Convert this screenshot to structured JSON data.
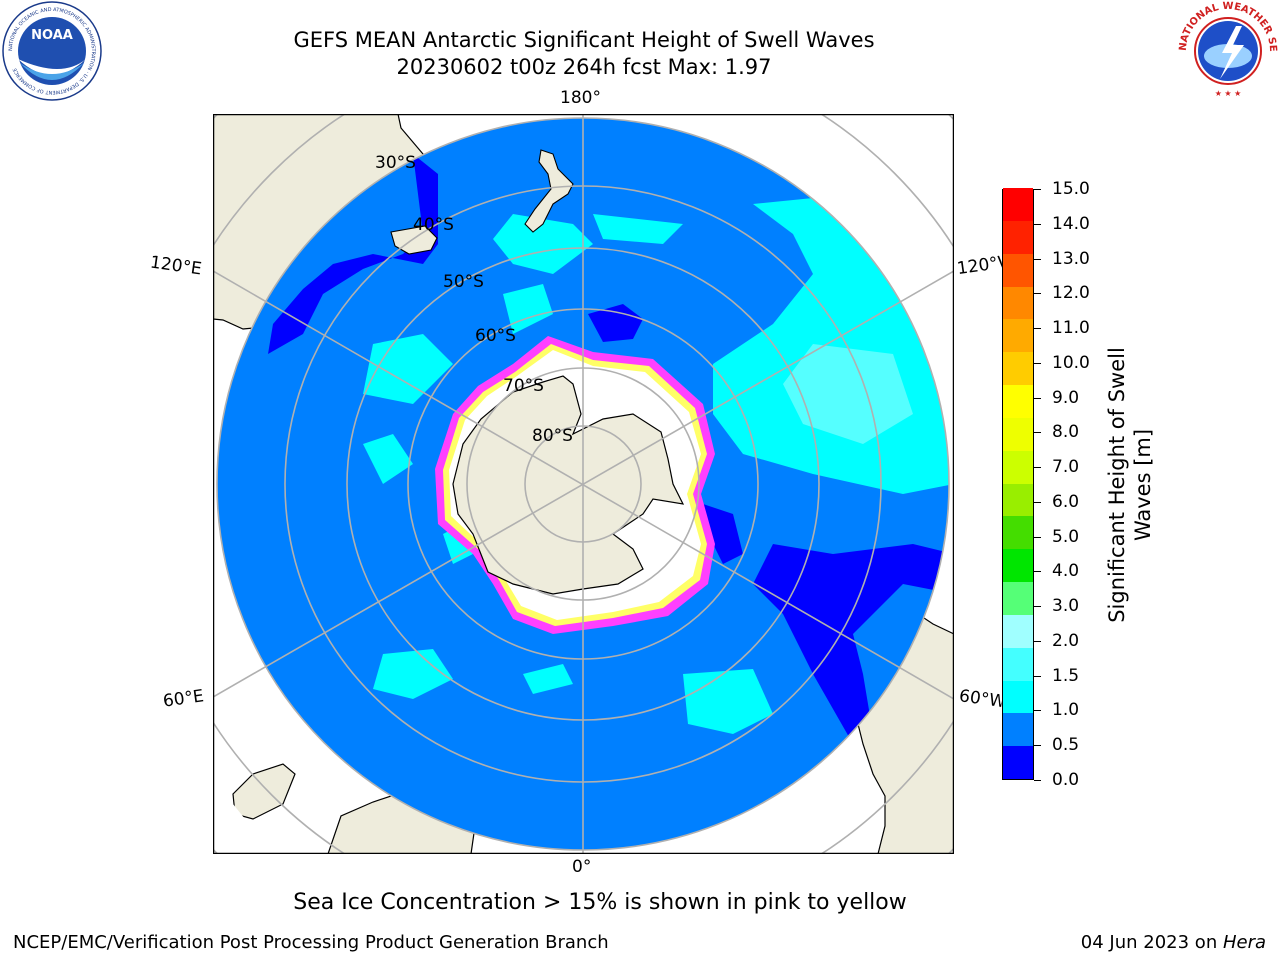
{
  "title": {
    "line1": "GEFS MEAN Antarctic Significant Height of Swell Waves",
    "line2": "20230602 t00z 264h fcst   Max: 1.97"
  },
  "logos": {
    "noaa": {
      "name": "noaa-logo",
      "text": "NOAA",
      "ring_text": "NATIONAL OCEANIC AND ATMOSPHERIC ADMINISTRATION · U.S. DEPARTMENT OF COMMERCE"
    },
    "nws": {
      "name": "national-weather-service-logo",
      "ring_text": "NATIONAL WEATHER SERVICE"
    }
  },
  "map": {
    "projection": "south-polar-stereographic",
    "longitude_labels": {
      "top": "180°",
      "bottom": "0°",
      "upper_left": "120°E",
      "lower_left": "60°E",
      "upper_right": "120°W",
      "lower_right": "60°W"
    },
    "latitude_labels": [
      "30°S",
      "40°S",
      "50°S",
      "60°S",
      "70°S",
      "80°S"
    ],
    "ocean_color": "#0080ff",
    "land_color": "#eeecdc",
    "ice_edge_colors": [
      "#ff40ff",
      "#ffff66",
      "#ffffff"
    ]
  },
  "colorbar": {
    "label": "Significant Height of Swell Waves [m]",
    "ticks": [
      "0.0",
      "0.5",
      "1.0",
      "1.5",
      "2.0",
      "3.0",
      "4.0",
      "5.0",
      "6.0",
      "7.0",
      "8.0",
      "9.0",
      "10.0",
      "11.0",
      "12.0",
      "13.0",
      "14.0",
      "15.0"
    ],
    "colors": [
      "#0000ff",
      "#0080ff",
      "#00ffff",
      "#44ffff",
      "#a0ffff",
      "#55ff77",
      "#00e600",
      "#44dd00",
      "#99ee00",
      "#ccff00",
      "#eeff00",
      "#ffff00",
      "#ffcc00",
      "#ffaa00",
      "#ff8800",
      "#ff5500",
      "#ff2200",
      "#ff0000"
    ]
  },
  "footnote": "Sea Ice Concentration > 15% is shown in pink to yellow",
  "credit": "NCEP/EMC/Verification Post Processing Product Generation Branch",
  "run_date": {
    "date": "04 Jun 2023 on ",
    "machine": "Hera"
  }
}
